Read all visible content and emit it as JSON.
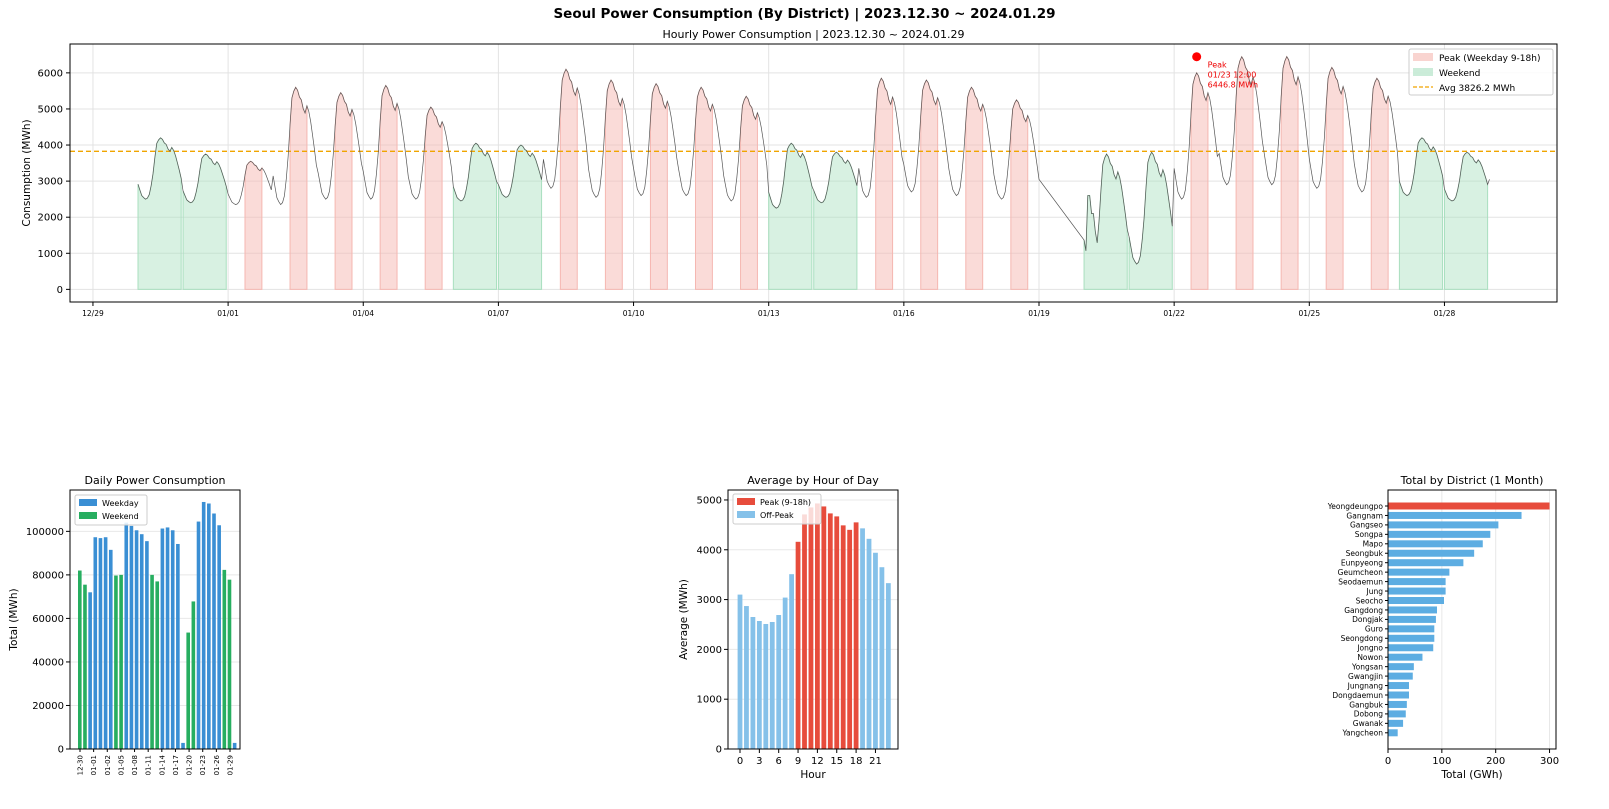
{
  "suptitle": "Seoul Power Consumption (By District) | 2023.12.30 ~ 2024.01.29",
  "colors": {
    "line": "#555555",
    "peak_fill": "#f5b7b1",
    "weekend_fill": "#a9dfbf",
    "avg": "#f0a500",
    "weekday_bar": "#3a8fd4",
    "weekend_bar": "#27ae60",
    "peak_bar": "#e74c3c",
    "offpeak_bar": "#85c1e9",
    "district_bar": "#5dade2",
    "district_top": "#e74c3c",
    "peak_marker": "#ff0000"
  },
  "chart_data": [
    {
      "type": "line",
      "title": "Hourly Power Consumption | 2023.12.30 ~ 2024.01.29",
      "xlabel": "",
      "ylabel": "Consumption (MWh)",
      "ylim": [
        -350,
        6800
      ],
      "yticks": [
        0,
        1000,
        2000,
        3000,
        4000,
        5000,
        6000
      ],
      "xticks": [
        "12/29",
        "01/01",
        "01/04",
        "01/07",
        "01/10",
        "01/13",
        "01/16",
        "01/19",
        "01/22",
        "01/25",
        "01/28"
      ],
      "xtick_day_index": [
        -1,
        2,
        5,
        8,
        11,
        14,
        17,
        20,
        23,
        26,
        29
      ],
      "grid": true,
      "legend": {
        "placement": "top-right",
        "entries": [
          "Peak (Weekday 9-18h)",
          "Weekend",
          "Avg 3826.2 MWh"
        ]
      },
      "average": 3826.2,
      "peak_annotation": {
        "label": "Peak",
        "time": "01/23 12:00",
        "value_text": "6446.8 MWh",
        "day_index": 24,
        "hour": 12,
        "value": 6446.8
      },
      "hourly_shape_note": "hourly values reconstructed as daily min + shape*(max-min)",
      "days": [
        {
          "date": "12/30",
          "type": "weekend",
          "min": 2500,
          "max": 4200
        },
        {
          "date": "12/31",
          "type": "weekend",
          "min": 2400,
          "max": 3750
        },
        {
          "date": "01/01",
          "type": "weekday",
          "min": 2350,
          "max": 3550
        },
        {
          "date": "01/02",
          "type": "weekday",
          "min": 2350,
          "max": 5600
        },
        {
          "date": "01/03",
          "type": "weekday",
          "min": 2500,
          "max": 5450
        },
        {
          "date": "01/04",
          "type": "weekday",
          "min": 2500,
          "max": 5650
        },
        {
          "date": "01/05",
          "type": "weekday",
          "min": 2500,
          "max": 5050
        },
        {
          "date": "01/06",
          "type": "weekend",
          "min": 2450,
          "max": 4050
        },
        {
          "date": "01/07",
          "type": "weekend",
          "min": 2550,
          "max": 4000
        },
        {
          "date": "01/08",
          "type": "weekday",
          "min": 2800,
          "max": 6100
        },
        {
          "date": "01/09",
          "type": "weekday",
          "min": 2550,
          "max": 5800
        },
        {
          "date": "01/10",
          "type": "weekday",
          "min": 2600,
          "max": 5700
        },
        {
          "date": "01/11",
          "type": "weekday",
          "min": 2600,
          "max": 5600
        },
        {
          "date": "01/12",
          "type": "weekday",
          "min": 2450,
          "max": 5350
        },
        {
          "date": "01/13",
          "type": "weekend",
          "min": 2250,
          "max": 4050
        },
        {
          "date": "01/14",
          "type": "weekend",
          "min": 2400,
          "max": 3800
        },
        {
          "date": "01/15",
          "type": "weekday",
          "min": 2550,
          "max": 5850
        },
        {
          "date": "01/16",
          "type": "weekday",
          "min": 2700,
          "max": 5800
        },
        {
          "date": "01/17",
          "type": "weekday",
          "min": 2600,
          "max": 5600
        },
        {
          "date": "01/18",
          "type": "weekday",
          "min": 2500,
          "max": 5250
        },
        {
          "date": "01/19",
          "type": "missing",
          "min": 3050,
          "max": 3050
        },
        {
          "date": "01/20",
          "type": "weekend",
          "min": 600,
          "max": 3750
        },
        {
          "date": "01/21",
          "type": "weekend",
          "min": 700,
          "max": 3800
        },
        {
          "date": "01/22",
          "type": "weekday",
          "min": 2500,
          "max": 6000
        },
        {
          "date": "01/23",
          "type": "weekday",
          "min": 2900,
          "max": 6447
        },
        {
          "date": "01/24",
          "type": "weekday",
          "min": 2900,
          "max": 6450
        },
        {
          "date": "01/25",
          "type": "weekday",
          "min": 2800,
          "max": 6150
        },
        {
          "date": "01/26",
          "type": "weekday",
          "min": 2700,
          "max": 5850
        },
        {
          "date": "01/27",
          "type": "weekend",
          "min": 2600,
          "max": 4200
        },
        {
          "date": "01/28",
          "type": "weekend",
          "min": 2450,
          "max": 3800
        },
        {
          "date": "01/29",
          "type": "partial",
          "min": 3050,
          "max": 3050
        }
      ]
    },
    {
      "type": "bar",
      "title": "Daily Power Consumption",
      "xlabel": "",
      "ylabel": "Total (MWh)",
      "ylim": [
        0,
        119000
      ],
      "yticks": [
        0,
        20000,
        40000,
        60000,
        80000,
        100000
      ],
      "legend": {
        "placement": "top-left",
        "entries": [
          "Weekday",
          "Weekend"
        ]
      },
      "categories": [
        "12-30",
        "12-31",
        "01-01",
        "01-02",
        "01-03",
        "01-04",
        "01-05",
        "01-06",
        "01-07",
        "01-08",
        "01-09",
        "01-10",
        "01-11",
        "01-12",
        "01-13",
        "01-14",
        "01-15",
        "01-16",
        "01-17",
        "01-18",
        "01-19",
        "01-20",
        "01-21",
        "01-22",
        "01-23",
        "01-24",
        "01-25",
        "01-26",
        "01-27",
        "01-28",
        "01-29"
      ],
      "tick_labels": [
        "12-30",
        "01-01",
        "01-02",
        "01-05",
        "01-08",
        "01-11",
        "01-14",
        "01-17",
        "01-20",
        "01-23",
        "01-26",
        "01-29"
      ],
      "values": [
        82000,
        75500,
        72000,
        97300,
        96900,
        97300,
        91500,
        79700,
        80000,
        104000,
        102500,
        100500,
        98700,
        95500,
        80000,
        77000,
        101300,
        101800,
        100500,
        94200,
        2800,
        53500,
        67800,
        104500,
        113500,
        112800,
        108200,
        102800,
        82300,
        77800,
        2800
      ],
      "kind": [
        "Weekend",
        "Weekend",
        "Weekday",
        "Weekday",
        "Weekday",
        "Weekday",
        "Weekday",
        "Weekend",
        "Weekend",
        "Weekday",
        "Weekday",
        "Weekday",
        "Weekday",
        "Weekday",
        "Weekend",
        "Weekend",
        "Weekday",
        "Weekday",
        "Weekday",
        "Weekday",
        "Weekday",
        "Weekend",
        "Weekend",
        "Weekday",
        "Weekday",
        "Weekday",
        "Weekday",
        "Weekday",
        "Weekend",
        "Weekend",
        "Weekday"
      ]
    },
    {
      "type": "bar",
      "title": "Average by Hour of Day",
      "xlabel": "Hour",
      "ylabel": "Average (MWh)",
      "ylim": [
        0,
        5200
      ],
      "yticks": [
        0,
        1000,
        2000,
        3000,
        4000,
        5000
      ],
      "xticks": [
        0,
        3,
        6,
        9,
        12,
        15,
        18,
        21
      ],
      "legend": {
        "placement": "top-left",
        "entries": [
          "Peak (9-18h)",
          "Off-Peak"
        ]
      },
      "categories": [
        0,
        1,
        2,
        3,
        4,
        5,
        6,
        7,
        8,
        9,
        10,
        11,
        12,
        13,
        14,
        15,
        16,
        17,
        18,
        19,
        20,
        21,
        22,
        23
      ],
      "values": [
        3100,
        2870,
        2650,
        2570,
        2510,
        2550,
        2690,
        3040,
        3510,
        4160,
        4710,
        4850,
        4930,
        4870,
        4730,
        4670,
        4490,
        4400,
        4550,
        4430,
        4220,
        3940,
        3650,
        3330
      ]
    },
    {
      "type": "bar",
      "orientation": "horizontal",
      "title": "Total by District (1 Month)",
      "xlabel": "Total (GWh)",
      "ylabel": "",
      "xlim": [
        0,
        312
      ],
      "xticks": [
        0,
        100,
        200,
        300
      ],
      "categories": [
        "Yeongdeungpo",
        "Gangnam",
        "Gangseo",
        "Songpa",
        "Mapo",
        "Seongbuk",
        "Eunpyeong",
        "Geumcheon",
        "Seodaemun",
        "Jung",
        "Seocho",
        "Gangdong",
        "Dongjak",
        "Guro",
        "Seongdong",
        "Jongno",
        "Nowon",
        "Yongsan",
        "Gwangjin",
        "Jungnang",
        "Dongdaemun",
        "Gangbuk",
        "Dobong",
        "Gwanak",
        "Yangcheon"
      ],
      "values": [
        300,
        248,
        205,
        190,
        176,
        160,
        140,
        114,
        107,
        107,
        104,
        91,
        89,
        86,
        86,
        84,
        64,
        48,
        46,
        39,
        39,
        35,
        33,
        28,
        18
      ]
    }
  ]
}
